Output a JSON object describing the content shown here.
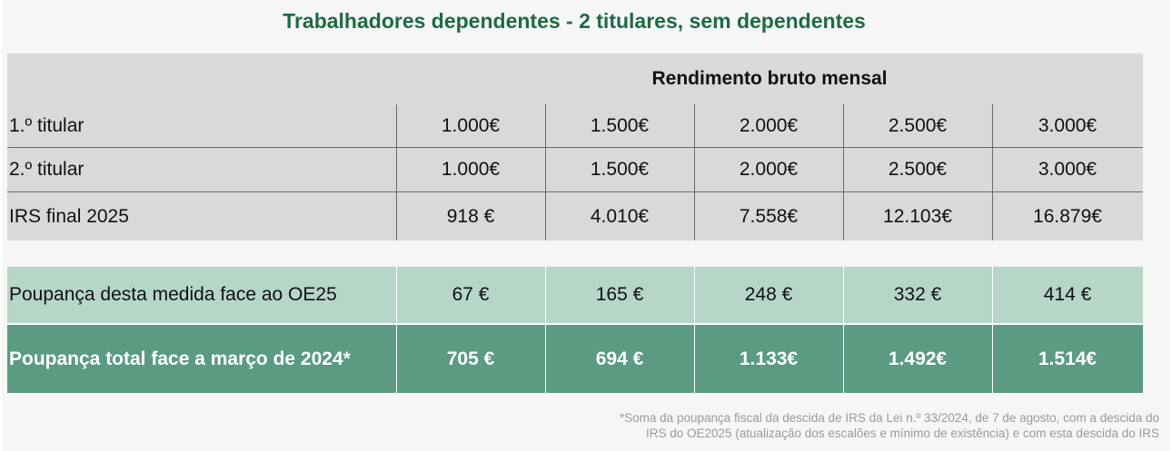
{
  "title": "Trabalhadores dependentes - 2 titulares, sem dependentes",
  "header": "Rendimento bruto mensal",
  "rows": [
    {
      "label": "1.º titular",
      "values": [
        "1.000€",
        "1.500€",
        "2.000€",
        "2.500€",
        "3.000€"
      ]
    },
    {
      "label": "2.º titular",
      "values": [
        "1.000€",
        "1.500€",
        "2.000€",
        "2.500€",
        "3.000€"
      ]
    },
    {
      "label": "IRS final 2025",
      "values": [
        "918 €",
        "4.010€",
        "7.558€",
        "12.103€",
        "16.879€"
      ]
    }
  ],
  "savings_rows": [
    {
      "label": "Poupança desta medida face ao OE25",
      "values": [
        "67 €",
        "165 €",
        "248 €",
        "332 €",
        "414 €"
      ]
    },
    {
      "label": "Poupança total face a março de 2024*",
      "values": [
        "705 €",
        "694 €",
        "1.133€",
        "1.492€",
        "1.514€"
      ]
    }
  ],
  "footnote_line1": "*Soma da poupança fiscal da descida de IRS da Lei n.º 33/2024, de 7 de agosto, com a descida do",
  "footnote_line2": "IRS do OE2025 (atualização dos escalões e mínimo de existência) e com esta descida do IRS",
  "colors": {
    "title": "#1d6b45",
    "light_green": "#b6d6c7",
    "dark_green": "#5a9b82",
    "grey": "#d9d9d9"
  }
}
